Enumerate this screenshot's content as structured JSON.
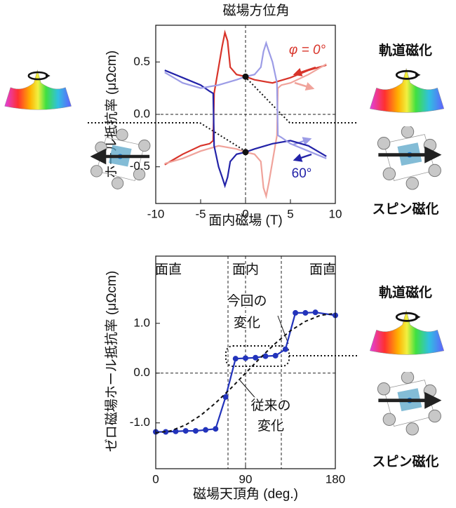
{
  "chart_data": [
    {
      "type": "line",
      "title": "磁場方位角",
      "x_label": "面内磁場 (T)",
      "y_label": "ホール抵抗率 (μΩcm)",
      "xlim": [
        -10,
        10
      ],
      "ylim": [
        -0.85,
        0.85
      ],
      "xticks": [
        -10,
        -5,
        0,
        5,
        10
      ],
      "yticks": [
        -0.5,
        {
          "value": 0,
          "label": "0.0"
        },
        0.5
      ],
      "series": [
        {
          "color": "#d8342a",
          "x": [
            -9,
            -7,
            -5,
            -4,
            -3.6,
            -3.5,
            -3,
            -2.6,
            -2.3,
            -2,
            -1.7,
            -1,
            0,
            1,
            3,
            5,
            7,
            9
          ],
          "values": [
            -0.48,
            -0.38,
            -0.3,
            -0.28,
            -0.25,
            0.2,
            0.45,
            0.65,
            0.78,
            0.7,
            0.45,
            0.38,
            0.36,
            0.33,
            0.3,
            0.35,
            0.42,
            0.47
          ]
        },
        {
          "color": "#f0a39b",
          "x": [
            -9,
            -7,
            -5,
            -3,
            -1,
            0,
            1,
            1.7,
            2,
            2.3,
            2.6,
            3,
            3.5,
            3.6,
            4,
            5,
            7,
            9
          ],
          "values": [
            -0.47,
            -0.42,
            -0.35,
            -0.3,
            -0.33,
            -0.36,
            -0.38,
            -0.45,
            -0.7,
            -0.78,
            -0.65,
            -0.45,
            -0.2,
            0.25,
            0.28,
            0.3,
            0.38,
            0.48
          ]
        },
        {
          "color": "#2323a8",
          "x": [
            -9,
            -7,
            -5,
            -4,
            -3.6,
            -3.5,
            -3,
            -2.6,
            -2.3,
            -2,
            -1.7,
            -1,
            0,
            1,
            3,
            5,
            7,
            9
          ],
          "values": [
            0.42,
            0.35,
            0.28,
            0.22,
            0.2,
            -0.3,
            -0.5,
            -0.6,
            -0.68,
            -0.6,
            -0.45,
            -0.38,
            -0.36,
            -0.33,
            -0.28,
            -0.25,
            -0.3,
            -0.4
          ]
        },
        {
          "color": "#9c9ce6",
          "x": [
            -9,
            -7,
            -5,
            -3,
            -1,
            0,
            1,
            1.7,
            2,
            2.3,
            2.6,
            3,
            3.5,
            3.6,
            4,
            5,
            7,
            9
          ],
          "values": [
            0.4,
            0.3,
            0.25,
            0.28,
            0.33,
            0.36,
            0.38,
            0.45,
            0.6,
            0.68,
            0.6,
            0.5,
            0.3,
            -0.2,
            -0.22,
            -0.28,
            -0.35,
            -0.42
          ]
        }
      ],
      "points": {
        "color": "#111111",
        "x": [
          0,
          0
        ],
        "values": [
          0.36,
          -0.36
        ]
      },
      "annotations": [
        {
          "text": "φ = 0°",
          "color": "#d8342a"
        },
        {
          "text": "60°",
          "color": "#2323a8"
        }
      ]
    },
    {
      "type": "line",
      "x_label": "磁場天頂角 (deg.)",
      "y_label": "ゼロ磁場ホール抵抗率 (μΩcm)",
      "xlim": [
        0,
        180
      ],
      "ylim": [
        -1.92,
        2.35
      ],
      "xticks": [
        0,
        90,
        180
      ],
      "yticks": [
        {
          "value": -1,
          "label": "-1.0"
        },
        {
          "value": 0,
          "label": "0.0"
        },
        {
          "value": 1,
          "label": "1.0"
        }
      ],
      "top_labels": [
        "面直",
        "面内",
        "面直"
      ],
      "series": [
        {
          "color": "#2233bb",
          "markers": true,
          "x": [
            0,
            10,
            20,
            30,
            40,
            50,
            60,
            70,
            80,
            90,
            100,
            110,
            120,
            130,
            140,
            150,
            160,
            180
          ],
          "values": [
            -1.18,
            -1.18,
            -1.17,
            -1.16,
            -1.16,
            -1.14,
            -1.12,
            -0.48,
            0.29,
            0.3,
            0.31,
            0.34,
            0.35,
            0.48,
            1.21,
            1.21,
            1.22,
            1.16
          ]
        },
        {
          "color": "#111111",
          "dashed": true,
          "x": [
            0,
            15,
            30,
            45,
            60,
            75,
            90,
            105,
            120,
            135,
            150,
            165,
            180
          ],
          "values": [
            -1.2,
            -1.16,
            -1.04,
            -0.85,
            -0.6,
            -0.31,
            0,
            0.31,
            0.6,
            0.85,
            1.04,
            1.16,
            1.2
          ]
        }
      ],
      "annotations": [
        "今回の",
        "変化",
        "従来の",
        "変化"
      ]
    }
  ],
  "side_labels": [
    "軌道磁化",
    "スピン磁化",
    "軌道磁化",
    "スピン磁化"
  ]
}
